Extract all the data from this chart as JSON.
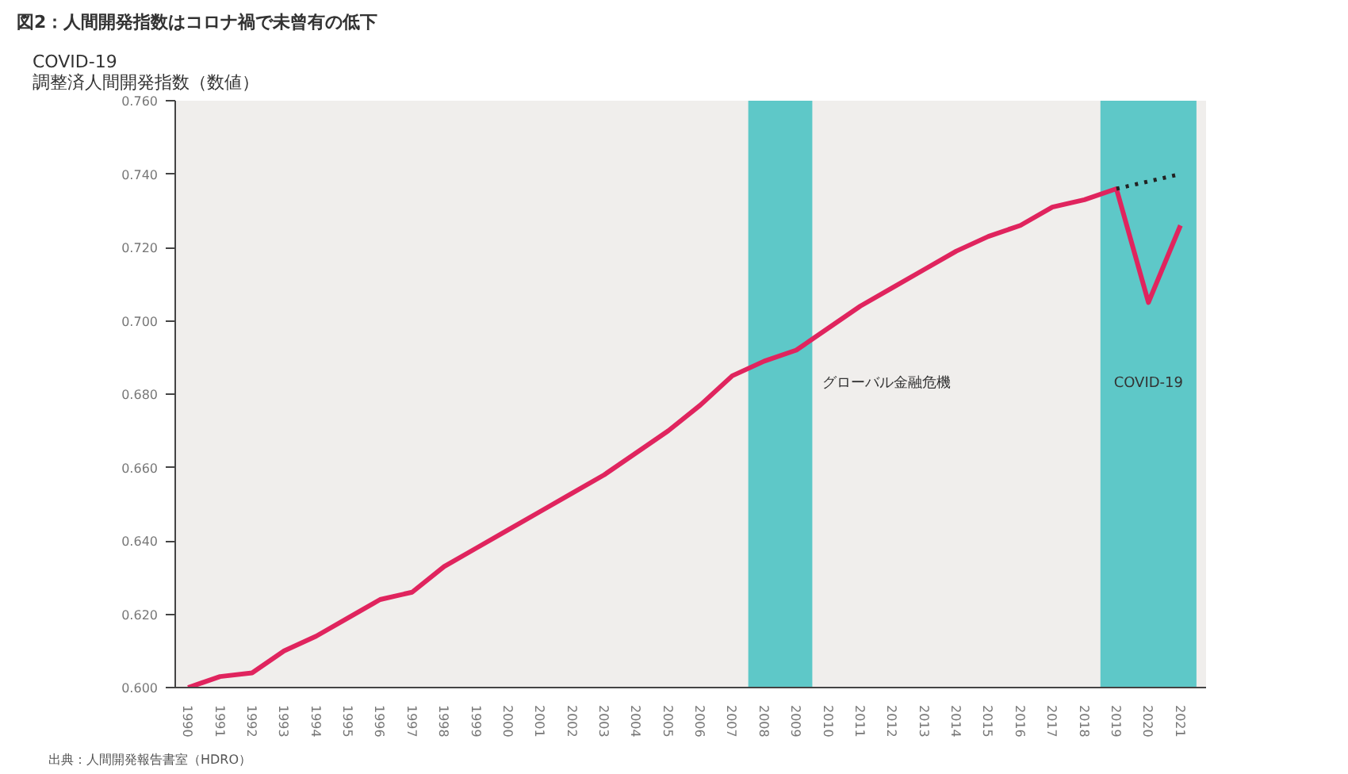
{
  "chart_data": {
    "type": "line",
    "title": "図2：人間開発指数はコロナ禍で未曾有の低下",
    "ylabel": "COVID-19\n調整済人間開発指数（数値）",
    "x": [
      1990,
      1991,
      1992,
      1993,
      1994,
      1995,
      1996,
      1997,
      1998,
      1999,
      2000,
      2001,
      2002,
      2003,
      2004,
      2005,
      2006,
      2007,
      2008,
      2009,
      2010,
      2011,
      2012,
      2013,
      2014,
      2015,
      2016,
      2017,
      2018,
      2019,
      2020,
      2021
    ],
    "series": [
      {
        "color": "#e0245e",
        "line_style": "solid",
        "values": [
          0.6,
          0.603,
          0.604,
          0.61,
          0.614,
          0.619,
          0.624,
          0.626,
          0.633,
          0.638,
          0.643,
          0.648,
          0.653,
          0.658,
          0.664,
          0.67,
          0.677,
          0.685,
          0.689,
          0.692,
          0.698,
          0.704,
          0.709,
          0.714,
          0.719,
          0.723,
          0.726,
          0.731,
          0.733,
          0.736,
          0.705,
          0.726
        ]
      },
      {
        "color": "#222222",
        "line_style": "dotted",
        "x": [
          2019,
          2020,
          2021
        ],
        "values": [
          0.736,
          0.738,
          0.74
        ]
      }
    ],
    "xlim": [
      1989.6,
      2021.8
    ],
    "xticks": [
      1990,
      1991,
      1992,
      1993,
      1994,
      1995,
      1996,
      1997,
      1998,
      1999,
      2000,
      2001,
      2002,
      2003,
      2004,
      2005,
      2006,
      2007,
      2008,
      2009,
      2010,
      2011,
      2012,
      2013,
      2014,
      2015,
      2016,
      2017,
      2018,
      2019,
      2020,
      2021
    ],
    "ylim": [
      0.6,
      0.76
    ],
    "yticks": [
      {
        "value": 0.6,
        "label": "0.600"
      },
      {
        "value": 0.62,
        "label": "0.620"
      },
      {
        "value": 0.64,
        "label": "0.640"
      },
      {
        "value": 0.66,
        "label": "0.660"
      },
      {
        "value": 0.68,
        "label": "0.680"
      },
      {
        "value": 0.7,
        "label": "0.700"
      },
      {
        "value": 0.72,
        "label": "0.720"
      },
      {
        "value": 0.74,
        "label": "0.740"
      },
      {
        "value": 0.76,
        "label": "0.760"
      }
    ],
    "bands": [
      {
        "axis": "x",
        "from": 2007.5,
        "to": 2009.5,
        "label": "グローバル金融危機",
        "color": "#5ec8c8"
      },
      {
        "axis": "x",
        "from": 2018.5,
        "to": 2021.5,
        "label": "COVID-19",
        "color": "#5ec8c8"
      }
    ],
    "grid": false,
    "annotations": [
      "出典：人間開発報告書室（HDRO）"
    ]
  }
}
